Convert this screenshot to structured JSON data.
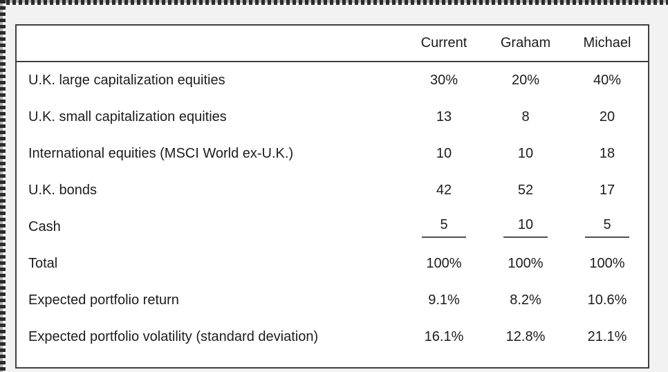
{
  "page": {
    "background_color": "#f2f2f2",
    "selection_border": {
      "sides": [
        "top",
        "left"
      ],
      "pattern": "checkered-marching-ants",
      "dark_color": "#2b2b2b",
      "light_color": "#b4b4b4"
    }
  },
  "table": {
    "background_color": "#ffffff",
    "border_color": "#3f3f3f",
    "text_color": "#1c1c1c",
    "cash_underline_color": "#4f4f4f",
    "columns": [
      "Current",
      "Graham",
      "Michael"
    ],
    "rows": [
      {
        "label": "U.K. large capitalization equities",
        "values": [
          "30%",
          "20%",
          "40%"
        ],
        "underline": false
      },
      {
        "label": "U.K. small capitalization equities",
        "values": [
          "13",
          "8",
          "20"
        ],
        "underline": false
      },
      {
        "label": "International equities (MSCI World ex-U.K.)",
        "values": [
          "10",
          "10",
          "18"
        ],
        "underline": false
      },
      {
        "label": "U.K. bonds",
        "values": [
          "42",
          "52",
          "17"
        ],
        "underline": false
      },
      {
        "label": "Cash",
        "values": [
          "5",
          "10",
          "5"
        ],
        "underline": true
      },
      {
        "label": "Total",
        "values": [
          "100%",
          "100%",
          "100%"
        ],
        "underline": false
      },
      {
        "label": "Expected portfolio return",
        "values": [
          "9.1%",
          "8.2%",
          "10.6%"
        ],
        "underline": false
      },
      {
        "label": "Expected portfolio volatility (standard deviation)",
        "values": [
          "16.1%",
          "12.8%",
          "21.1%"
        ],
        "underline": false
      }
    ]
  },
  "chart_data": {
    "type": "table",
    "columns": [
      "",
      "Current",
      "Graham",
      "Michael"
    ],
    "rows": [
      [
        "U.K. large capitalization equities",
        "30%",
        "20%",
        "40%"
      ],
      [
        "U.K. small capitalization equities",
        "13",
        "8",
        "20"
      ],
      [
        "International equities (MSCI World ex-U.K.)",
        "10",
        "10",
        "18"
      ],
      [
        "U.K. bonds",
        "42",
        "52",
        "17"
      ],
      [
        "Cash",
        "5",
        "10",
        "5"
      ],
      [
        "Total",
        "100%",
        "100%",
        "100%"
      ],
      [
        "Expected portfolio return",
        "9.1%",
        "8.2%",
        "10.6%"
      ],
      [
        "Expected portfolio volatility (standard deviation)",
        "16.1%",
        "12.8%",
        "21.1%"
      ]
    ]
  }
}
